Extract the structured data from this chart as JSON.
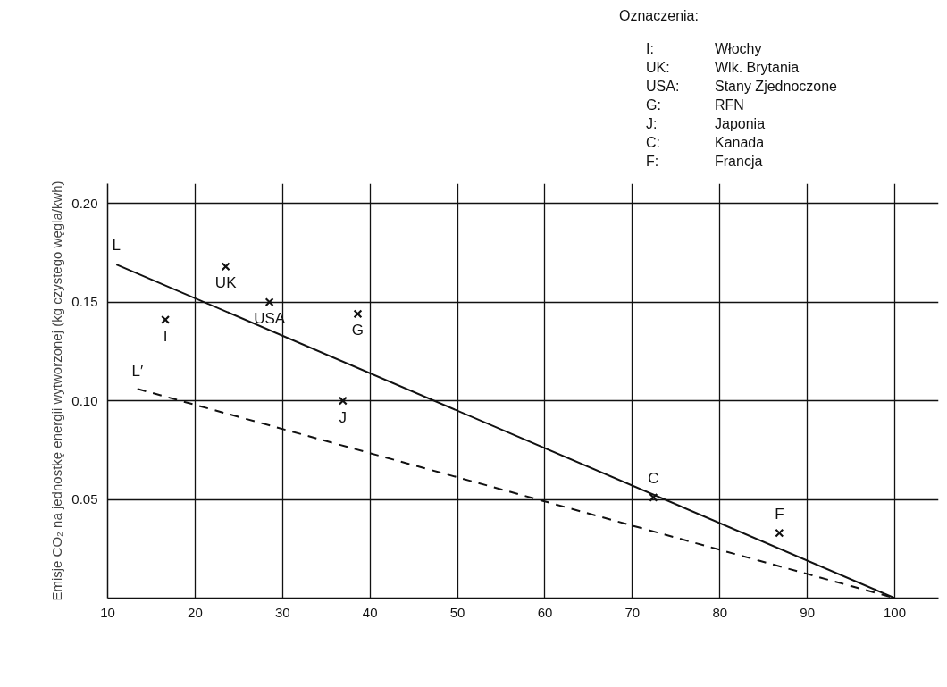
{
  "chart_data": {
    "type": "scatter",
    "ylabel": "Emisje CO₂ na jednostkę energii wytworzonej (kg czystego węgla/kwh)",
    "xlim": [
      10,
      105
    ],
    "ylim": [
      0,
      0.21
    ],
    "xticks": [
      10,
      20,
      30,
      40,
      50,
      60,
      70,
      80,
      90,
      100
    ],
    "yticks": [
      {
        "value": 0.05,
        "label": "0.05"
      },
      {
        "value": 0.1,
        "label": "0.10"
      },
      {
        "value": 0.15,
        "label": "0.15"
      },
      {
        "value": 0.2,
        "label": "0.20"
      }
    ],
    "grid": true,
    "series": [
      {
        "marker": "cross",
        "color": "#111111",
        "x": [
          16.6,
          23.5,
          28.5,
          38.6,
          36.9,
          72.4,
          86.8
        ],
        "values": [
          0.141,
          0.168,
          0.15,
          0.144,
          0.1,
          0.051,
          0.033
        ]
      },
      {
        "type": "line",
        "color": "#111111",
        "line_style": "solid",
        "x": [
          11,
          100
        ],
        "values": [
          0.169,
          0
        ]
      },
      {
        "type": "line",
        "color": "#111111",
        "line_style": "dashed",
        "x": [
          13.4,
          100
        ],
        "values": [
          0.106,
          0
        ]
      }
    ],
    "annotations": [
      {
        "text": "I",
        "x": 16.6,
        "y": 0.141
      },
      {
        "text": "UK",
        "x": 23.5,
        "y": 0.168
      },
      {
        "text": "USA",
        "x": 28.5,
        "y": 0.15
      },
      {
        "text": "G",
        "x": 38.6,
        "y": 0.144
      },
      {
        "text": "J",
        "x": 36.9,
        "y": 0.1
      },
      {
        "text": "C",
        "x": 72.4,
        "y": 0.051
      },
      {
        "text": "F",
        "x": 86.8,
        "y": 0.033
      },
      {
        "text": "L",
        "x": 11,
        "y": 0.169
      },
      {
        "text": "L′",
        "x": 13.4,
        "y": 0.106
      },
      "Oznaczenia:",
      "I: Włochy",
      "UK: Wlk. Brytania",
      "USA: Stany Zjednoczone",
      "G: RFN",
      "J: Japonia",
      "C: Kanada",
      "F: Francja"
    ]
  }
}
